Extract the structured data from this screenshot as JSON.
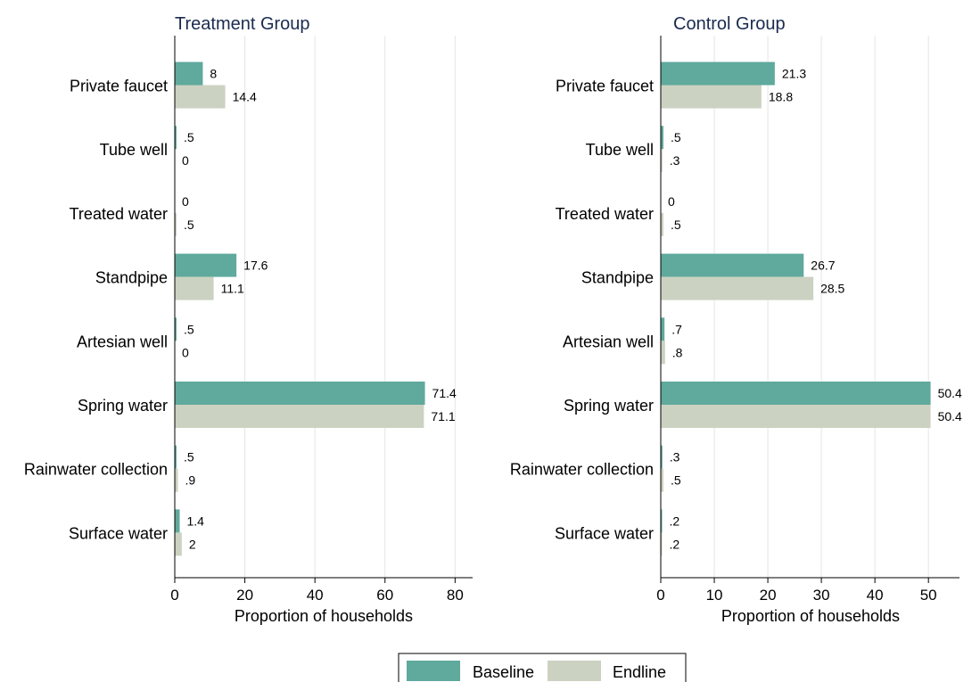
{
  "chart_data": [
    {
      "type": "bar",
      "orientation": "horizontal",
      "title": "Treatment Group",
      "xlabel": "Proportion of households",
      "xlim": [
        0,
        85
      ],
      "xticks": [
        "0",
        "20",
        "40",
        "60",
        "80"
      ],
      "xtick_values": [
        0,
        20,
        40,
        60,
        80
      ],
      "grid": true,
      "categories": [
        "Private faucet",
        "Tube well",
        "Treated water",
        "Standpipe",
        "Artesian well",
        "Spring water",
        "Rainwater collection",
        "Surface water"
      ],
      "series": [
        {
          "name": "Baseline",
          "values": [
            8,
            0.5,
            0,
            17.6,
            0.5,
            71.4,
            0.5,
            1.4
          ],
          "labels": [
            "8",
            ".5",
            "0",
            "17.6",
            ".5",
            "71.4",
            ".5",
            "1.4"
          ]
        },
        {
          "name": "Endline",
          "values": [
            14.4,
            0,
            0.5,
            11.1,
            0,
            71.1,
            0.9,
            2
          ],
          "labels": [
            "14.4",
            "0",
            ".5",
            "11.1",
            "0",
            "71.1",
            ".9",
            "2"
          ]
        }
      ]
    },
    {
      "type": "bar",
      "orientation": "horizontal",
      "title": "Control Group",
      "xlabel": "Proportion of households",
      "xlim": [
        0,
        55.8
      ],
      "xticks": [
        "0",
        "10",
        "20",
        "30",
        "40",
        "50"
      ],
      "xtick_values": [
        0,
        10,
        20,
        30,
        40,
        50
      ],
      "grid": true,
      "categories": [
        "Private faucet",
        "Tube well",
        "Treated water",
        "Standpipe",
        "Artesian well",
        "Spring water",
        "Rainwater collection",
        "Surface water"
      ],
      "series": [
        {
          "name": "Baseline",
          "values": [
            21.3,
            0.5,
            0,
            26.7,
            0.7,
            50.4,
            0.3,
            0.2
          ],
          "labels": [
            "21.3",
            ".5",
            "0",
            "26.7",
            ".7",
            "50.4",
            ".3",
            ".2"
          ]
        },
        {
          "name": "Endline",
          "values": [
            18.8,
            0.3,
            0.5,
            28.5,
            0.8,
            50.4,
            0.5,
            0.2
          ],
          "labels": [
            "18.8",
            ".3",
            ".5",
            "28.5",
            ".8",
            "50.4",
            ".5",
            ".2"
          ]
        }
      ]
    }
  ],
  "legend": {
    "placement": "bottom-center",
    "items": [
      {
        "label": "Baseline",
        "color": "#5fa99d"
      },
      {
        "label": "Endline",
        "color": "#cbd2c1"
      }
    ]
  },
  "colors": {
    "baseline": "#5fa99d",
    "endline": "#cbd2c1",
    "title": "#1a2b4f",
    "grid": "#e5e5e5",
    "axis": "#000000"
  }
}
